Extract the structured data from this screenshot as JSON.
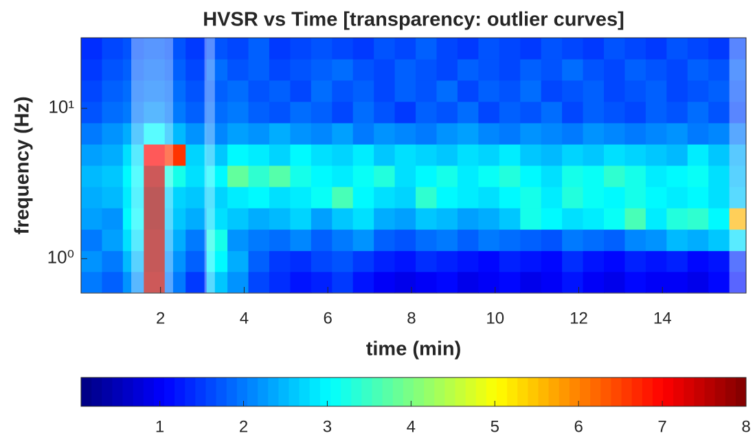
{
  "chart_data": {
    "type": "heatmap",
    "title": "HVSR vs Time [transparency: outlier curves]",
    "x_label": "time (min)",
    "y_label": "frequency (Hz)",
    "xlim": [
      0.1,
      16
    ],
    "xticks": [
      2,
      4,
      6,
      8,
      10,
      12,
      14
    ],
    "ylim": [
      0.59,
      29.5
    ],
    "yscale": "log",
    "yticks": [
      {
        "value": 1,
        "label": "10⁰"
      },
      {
        "value": 10,
        "label": "10¹"
      }
    ],
    "colormap": "jet",
    "clim": [
      0.06,
      8
    ],
    "cticks": [
      1,
      2,
      3,
      4,
      5,
      6,
      7,
      8
    ],
    "x": [
      0.35,
      0.85,
      1.35,
      1.85,
      2.35,
      2.85,
      3.35,
      3.85,
      4.35,
      4.85,
      5.35,
      5.85,
      6.35,
      6.85,
      7.35,
      7.85,
      8.35,
      8.85,
      9.35,
      9.85,
      10.35,
      10.85,
      11.35,
      11.85,
      12.35,
      12.85,
      13.35,
      13.85,
      14.35,
      14.85,
      15.35,
      15.85
    ],
    "y": [
      0.7,
      0.96,
      1.33,
      1.85,
      2.56,
      3.55,
      4.91,
      6.81,
      9.43,
      13.1,
      18.1,
      25.1
    ],
    "z": [
      [
        2.0,
        1.8,
        2.2,
        7.6,
        2.0,
        1.5,
        2.6,
        2.2,
        1.6,
        1.4,
        1.2,
        1.3,
        1.5,
        1.2,
        1.0,
        0.9,
        1.0,
        1.1,
        0.9,
        1.0,
        1.1,
        0.9,
        1.0,
        1.2,
        1.0,
        0.9,
        1.1,
        1.0,
        1.0,
        0.9,
        1.1,
        1.2
      ],
      [
        2.2,
        2.0,
        2.5,
        7.7,
        2.2,
        1.8,
        3.0,
        2.4,
        1.8,
        1.5,
        1.4,
        1.6,
        1.7,
        1.5,
        1.3,
        1.2,
        1.4,
        1.3,
        1.2,
        1.1,
        1.3,
        1.2,
        1.1,
        1.4,
        1.2,
        1.1,
        1.3,
        1.2,
        1.3,
        1.1,
        1.2,
        1.4
      ],
      [
        2.0,
        2.3,
        2.8,
        7.7,
        2.4,
        2.0,
        3.2,
        2.2,
        2.0,
        1.9,
        2.1,
        1.8,
        2.0,
        2.2,
        1.8,
        1.7,
        1.9,
        2.0,
        1.8,
        2.0,
        1.9,
        1.8,
        1.7,
        2.0,
        1.9,
        1.8,
        2.1,
        2.2,
        2.5,
        2.4,
        2.6,
        2.8
      ],
      [
        2.3,
        2.2,
        3.0,
        7.8,
        2.6,
        2.4,
        2.8,
        2.6,
        2.4,
        2.5,
        2.7,
        2.3,
        2.6,
        2.8,
        2.4,
        2.3,
        2.6,
        2.5,
        2.3,
        2.4,
        2.6,
        3.2,
        3.0,
        2.8,
        2.9,
        3.1,
        3.6,
        2.9,
        3.3,
        3.4,
        3.0,
        5.6
      ],
      [
        2.4,
        2.5,
        2.9,
        7.8,
        2.7,
        2.6,
        2.7,
        2.9,
        3.0,
        2.8,
        2.9,
        3.1,
        3.6,
        3.0,
        2.8,
        2.7,
        3.4,
        3.0,
        2.9,
        2.8,
        3.0,
        3.2,
        2.9,
        3.3,
        3.1,
        3.0,
        3.2,
        3.0,
        2.9,
        3.0,
        2.8,
        2.6
      ],
      [
        2.5,
        2.6,
        3.0,
        7.6,
        3.2,
        2.8,
        3.0,
        3.8,
        3.4,
        3.7,
        3.2,
        3.0,
        2.9,
        3.1,
        3.3,
        2.8,
        3.0,
        3.2,
        2.9,
        3.1,
        3.3,
        3.0,
        2.8,
        3.2,
        3.1,
        3.4,
        3.2,
        2.9,
        3.0,
        3.1,
        2.8,
        2.5
      ],
      [
        2.3,
        2.4,
        2.8,
        7.0,
        6.6,
        2.7,
        2.6,
        3.0,
        2.9,
        2.7,
        3.0,
        2.8,
        2.7,
        2.9,
        2.6,
        2.8,
        2.7,
        2.6,
        2.8,
        2.7,
        2.9,
        2.6,
        2.5,
        2.7,
        2.6,
        2.8,
        2.7,
        2.6,
        2.5,
        2.9,
        2.6,
        2.4
      ],
      [
        2.0,
        2.2,
        2.4,
        3.0,
        2.5,
        2.2,
        2.1,
        2.3,
        2.2,
        2.4,
        2.2,
        2.1,
        2.3,
        2.0,
        2.2,
        2.1,
        2.0,
        2.2,
        2.3,
        2.1,
        2.0,
        2.2,
        2.1,
        2.0,
        2.2,
        2.1,
        2.0,
        2.1,
        2.2,
        2.0,
        2.1,
        2.0
      ],
      [
        1.7,
        1.9,
        2.0,
        2.2,
        2.0,
        1.8,
        1.9,
        2.0,
        1.8,
        1.7,
        1.9,
        1.8,
        1.6,
        1.9,
        1.7,
        1.5,
        1.8,
        1.7,
        1.9,
        1.6,
        1.8,
        1.7,
        1.9,
        1.6,
        1.8,
        1.7,
        1.6,
        1.8,
        1.7,
        1.9,
        1.7,
        1.6
      ],
      [
        1.6,
        1.8,
        1.9,
        2.0,
        1.9,
        1.7,
        1.8,
        1.9,
        1.7,
        1.8,
        1.6,
        1.9,
        1.7,
        1.8,
        1.6,
        1.8,
        1.7,
        1.9,
        1.6,
        1.8,
        1.7,
        1.9,
        1.6,
        1.7,
        1.8,
        1.6,
        1.7,
        1.8,
        1.6,
        1.7,
        1.8,
        1.7
      ],
      [
        1.5,
        1.7,
        1.8,
        1.9,
        1.8,
        1.6,
        1.9,
        1.7,
        1.8,
        1.6,
        1.7,
        1.8,
        1.9,
        1.7,
        1.6,
        1.8,
        1.7,
        1.6,
        1.8,
        1.7,
        1.6,
        1.8,
        1.7,
        1.9,
        1.7,
        1.6,
        1.8,
        1.7,
        1.6,
        1.8,
        1.7,
        1.8
      ],
      [
        1.4,
        1.6,
        1.7,
        1.8,
        1.7,
        1.5,
        1.7,
        1.6,
        1.8,
        1.5,
        1.6,
        1.7,
        1.6,
        1.5,
        1.7,
        1.6,
        1.8,
        1.6,
        1.5,
        1.7,
        1.6,
        1.5,
        1.7,
        1.6,
        1.5,
        1.7,
        1.6,
        1.5,
        1.7,
        1.6,
        1.5,
        1.6
      ]
    ],
    "outlier_windows": [
      [
        1.3,
        2.3
      ],
      [
        3.05,
        3.3
      ],
      [
        15.6,
        16
      ]
    ]
  }
}
